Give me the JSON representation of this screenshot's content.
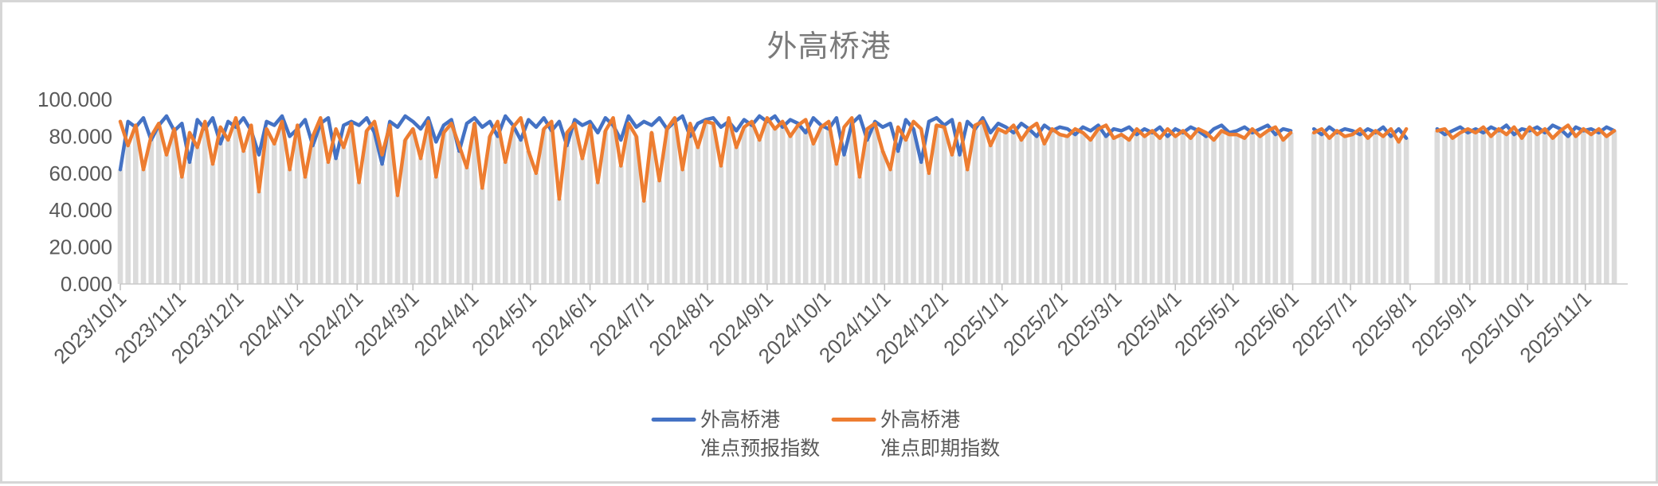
{
  "window": {
    "background": "#ffffff",
    "frame_color": "#d6d6d6"
  },
  "chart_data": {
    "type": "line",
    "title": "外高桥港",
    "grid": "off",
    "legend_position": "bottom-center",
    "colors": {
      "title_text": "#7a7a7a",
      "axis_text": "#595959",
      "axis_line": "#c9c9c9",
      "tick_mark": "#bfbfbf",
      "drop_lines": "#dbdbdb"
    },
    "y_axis": {
      "min": 0,
      "max": 100,
      "tick_values": [
        0,
        20,
        40,
        60,
        80,
        100
      ],
      "tick_labels": [
        "0.000",
        "20.000",
        "40.000",
        "60.000",
        "80.000",
        "100.000"
      ]
    },
    "x_axis": {
      "start_date": "2023/10/1",
      "end_date": "2025/11/18",
      "total_days": 783,
      "tick_labels": [
        "2023/10/1",
        "2023/11/1",
        "2023/12/1",
        "2024/1/1",
        "2024/2/1",
        "2024/3/1",
        "2024/4/1",
        "2024/5/1",
        "2024/6/1",
        "2024/7/1",
        "2024/8/1",
        "2024/9/1",
        "2024/10/1",
        "2024/11/1",
        "2024/12/1",
        "2025/1/1",
        "2025/2/1",
        "2025/3/1",
        "2025/4/1",
        "2025/5/1",
        "2025/6/1",
        "2025/7/1",
        "2025/8/1",
        "2025/9/1",
        "2025/10/1",
        "2025/11/1"
      ],
      "tick_day_offsets": [
        0,
        31,
        61,
        92,
        123,
        152,
        183,
        213,
        244,
        274,
        305,
        336,
        366,
        397,
        427,
        458,
        489,
        517,
        548,
        578,
        609,
        639,
        670,
        701,
        731,
        761
      ]
    },
    "sampling": {
      "step_days": 4,
      "point_count": 195,
      "note_gaps_days": [
        [
          610,
          618
        ],
        [
          670,
          682
        ]
      ]
    },
    "series": [
      {
        "name": "外高桥港准点预报指数",
        "legend_line1": "外高桥港",
        "legend_line2": "准点预报指数",
        "color": "#4472C4",
        "values": [
          62,
          88,
          85,
          90,
          78,
          86,
          91,
          83,
          87,
          66,
          89,
          84,
          90,
          76,
          88,
          85,
          90,
          83,
          70,
          88,
          86,
          91,
          80,
          84,
          89,
          75,
          87,
          90,
          68,
          86,
          88,
          86,
          90,
          82,
          65,
          88,
          85,
          91,
          88,
          84,
          90,
          77,
          86,
          89,
          72,
          87,
          90,
          85,
          88,
          80,
          91,
          86,
          78,
          89,
          85,
          90,
          83,
          88,
          75,
          89,
          86,
          88,
          82,
          90,
          86,
          78,
          91,
          85,
          88,
          86,
          90,
          84,
          88,
          91,
          80,
          87,
          89,
          90,
          85,
          88,
          83,
          89,
          86,
          91,
          88,
          91,
          85,
          89,
          87,
          82,
          90,
          86,
          84,
          90,
          70,
          87,
          91,
          78,
          88,
          85,
          87,
          72,
          89,
          84,
          66,
          88,
          90,
          86,
          89,
          70,
          88,
          84,
          90,
          82,
          87,
          85,
          82,
          87,
          84,
          80,
          86,
          83,
          85,
          84,
          81,
          85,
          83,
          86,
          80,
          84,
          83,
          85,
          81,
          84,
          82,
          85,
          80,
          84,
          82,
          85,
          83,
          80,
          84,
          86,
          82,
          83,
          85,
          82,
          84,
          86,
          81,
          84,
          83,
          null,
          null,
          84,
          81,
          85,
          82,
          84,
          83,
          81,
          84,
          82,
          85,
          80,
          84,
          79,
          null,
          null,
          null,
          84,
          81,
          83,
          85,
          82,
          84,
          82,
          85,
          83,
          86,
          81,
          84,
          83,
          85,
          82,
          86,
          84,
          80,
          85,
          83,
          84,
          82,
          85,
          83
        ]
      },
      {
        "name": "外高桥港准点即期指数",
        "legend_line1": "外高桥港",
        "legend_line2": "准点即期指数",
        "color": "#ED7D31",
        "values": [
          88,
          75,
          86,
          62,
          80,
          87,
          70,
          84,
          58,
          82,
          74,
          88,
          65,
          85,
          78,
          90,
          72,
          86,
          50,
          84,
          76,
          88,
          62,
          86,
          58,
          80,
          90,
          66,
          84,
          74,
          87,
          55,
          83,
          88,
          70,
          86,
          48,
          78,
          84,
          68,
          88,
          58,
          82,
          87,
          75,
          63,
          87,
          52,
          80,
          88,
          66,
          85,
          90,
          72,
          60,
          84,
          88,
          46,
          82,
          87,
          68,
          86,
          55,
          83,
          90,
          64,
          87,
          80,
          45,
          82,
          56,
          84,
          90,
          62,
          87,
          74,
          88,
          87,
          64,
          90,
          74,
          85,
          88,
          78,
          90,
          84,
          88,
          80,
          86,
          89,
          76,
          85,
          88,
          65,
          85,
          90,
          58,
          84,
          87,
          72,
          62,
          85,
          78,
          88,
          84,
          60,
          86,
          85,
          70,
          87,
          62,
          86,
          88,
          75,
          84,
          82,
          86,
          78,
          84,
          87,
          76,
          84,
          81,
          80,
          84,
          82,
          78,
          84,
          86,
          79,
          81,
          78,
          84,
          80,
          83,
          79,
          84,
          80,
          83,
          79,
          84,
          82,
          78,
          83,
          81,
          81,
          79,
          84,
          80,
          83,
          85,
          78,
          82,
          null,
          null,
          82,
          84,
          79,
          83,
          80,
          81,
          84,
          79,
          83,
          80,
          84,
          77,
          84,
          null,
          null,
          null,
          83,
          84,
          79,
          82,
          84,
          82,
          85,
          80,
          84,
          81,
          85,
          79,
          85,
          81,
          84,
          79,
          83,
          86,
          80,
          84,
          81,
          84,
          80,
          83
        ]
      }
    ]
  }
}
